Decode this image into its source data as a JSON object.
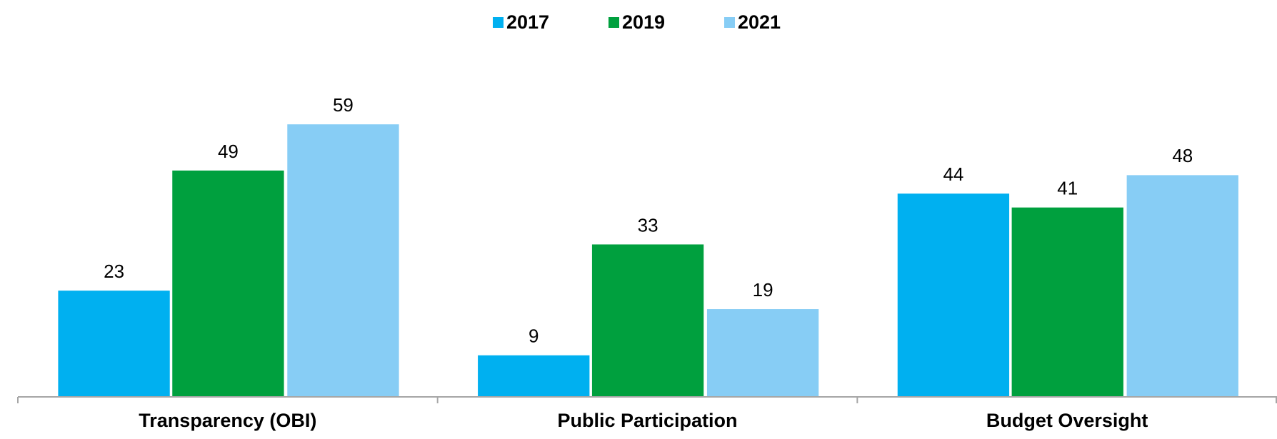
{
  "chart_data": {
    "type": "bar",
    "categories": [
      "Transparency (OBI)",
      "Public Participation",
      "Budget Oversight"
    ],
    "series": [
      {
        "name": "2017",
        "color": "#00b0f0",
        "values": [
          23,
          9,
          44
        ]
      },
      {
        "name": "2019",
        "color": "#00a03e",
        "values": [
          49,
          33,
          41
        ]
      },
      {
        "name": "2021",
        "color": "#87cdf5",
        "values": [
          59,
          19,
          48
        ]
      }
    ],
    "ylim": [
      0,
      70
    ],
    "legend": "top"
  }
}
